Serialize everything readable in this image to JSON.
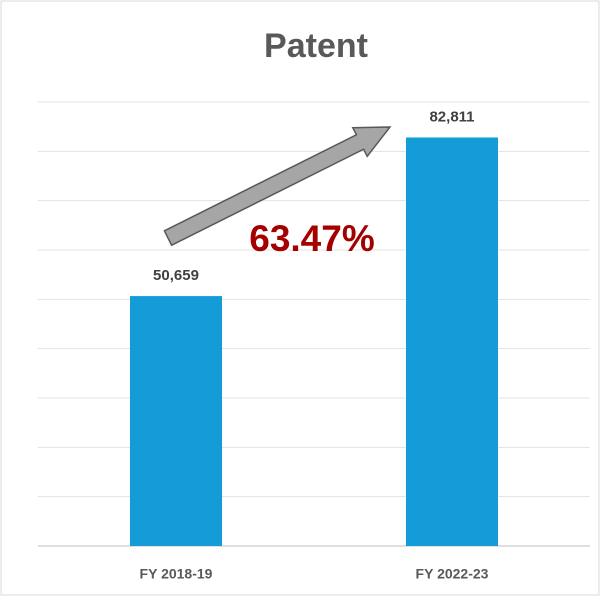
{
  "chart_data": {
    "type": "bar",
    "title": "Patent",
    "categories": [
      "FY 2018-19",
      "FY 2022-23"
    ],
    "values": [
      50659,
      82811
    ],
    "value_labels": [
      "50,659",
      "82,811"
    ],
    "color": "#139cd8",
    "annotation": "63.47%",
    "ylim": [
      0,
      90000
    ],
    "yticks": [
      0,
      10000,
      20000,
      30000,
      40000,
      50000,
      60000,
      70000,
      80000,
      90000
    ],
    "ytick_labels": false,
    "grid": true
  }
}
